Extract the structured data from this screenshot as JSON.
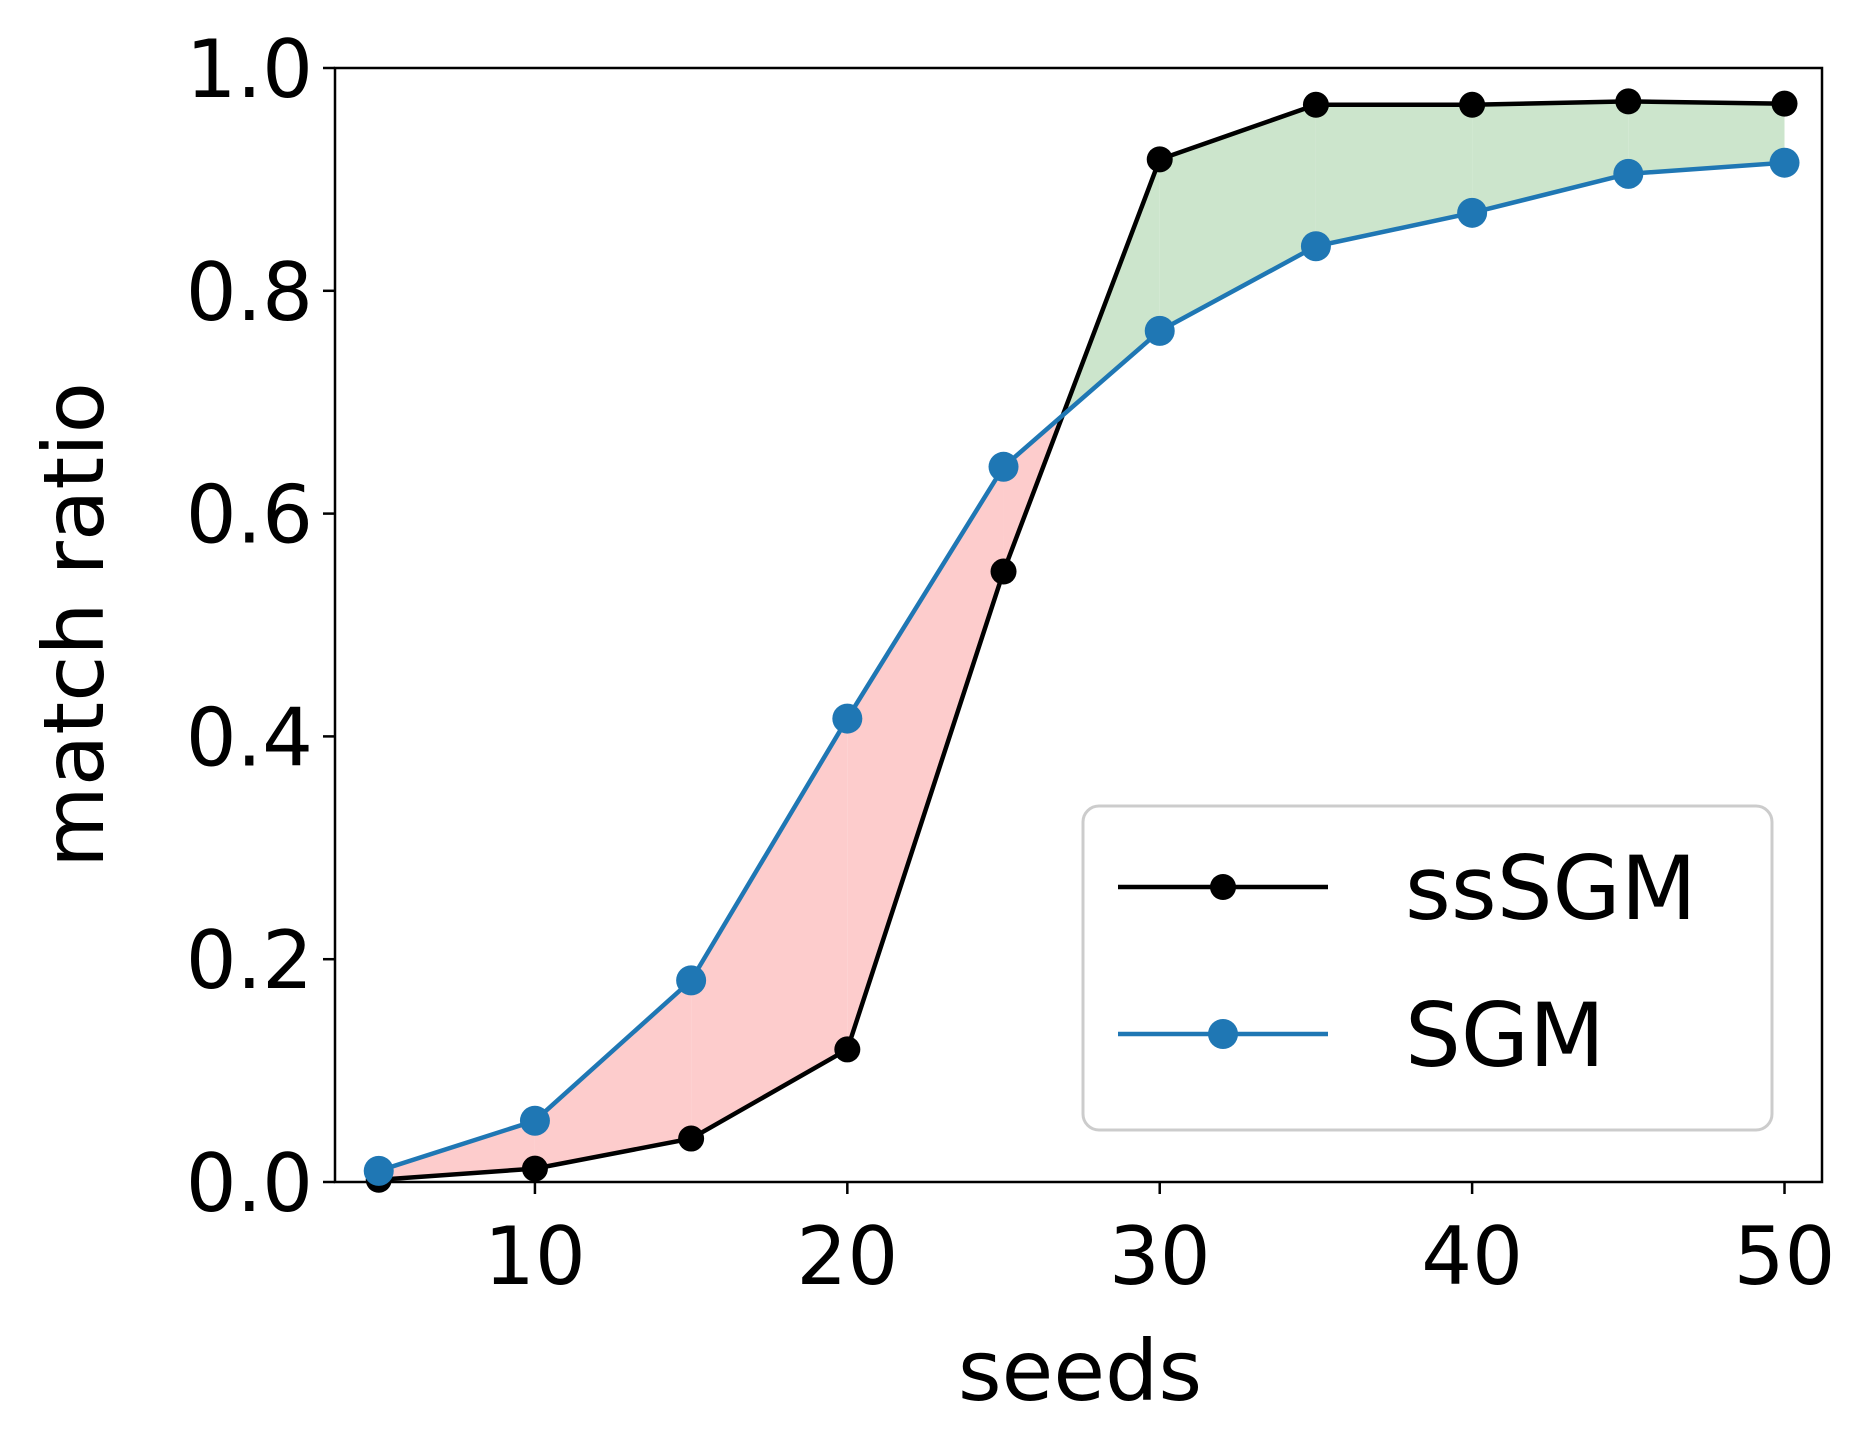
{
  "chart_data": {
    "type": "line",
    "title": "",
    "xlabel": "seeds",
    "ylabel": "match ratio",
    "xlim": [
      3.6,
      51.2
    ],
    "ylim": [
      0.0,
      1.0
    ],
    "xticks": [
      10,
      20,
      30,
      40,
      50
    ],
    "xtick_labels": [
      "10",
      "20",
      "30",
      "40",
      "50"
    ],
    "yticks": [
      0.0,
      0.2,
      0.4,
      0.6,
      0.8,
      1.0
    ],
    "ytick_labels": [
      "0.0",
      "0.2",
      "0.4",
      "0.6",
      "0.8",
      "1.0"
    ],
    "grid": false,
    "legend_position": "lower-right",
    "x": [
      5,
      10,
      15,
      20,
      25,
      30,
      35,
      40,
      45,
      50
    ],
    "series": [
      {
        "name": "ssSGM",
        "color": "#000000",
        "values": [
          0.002,
          0.012,
          0.039,
          0.119,
          0.548,
          0.918,
          0.967,
          0.967,
          0.97,
          0.968
        ]
      },
      {
        "name": "SGM",
        "color": "#1f77b4",
        "values": [
          0.01,
          0.055,
          0.181,
          0.416,
          0.642,
          0.764,
          0.84,
          0.87,
          0.905,
          0.915
        ]
      }
    ],
    "fill_between": {
      "where_ssSGM_above_color": "#cce5cc",
      "where_ssSGM_below_color": "#fdcccc"
    }
  }
}
